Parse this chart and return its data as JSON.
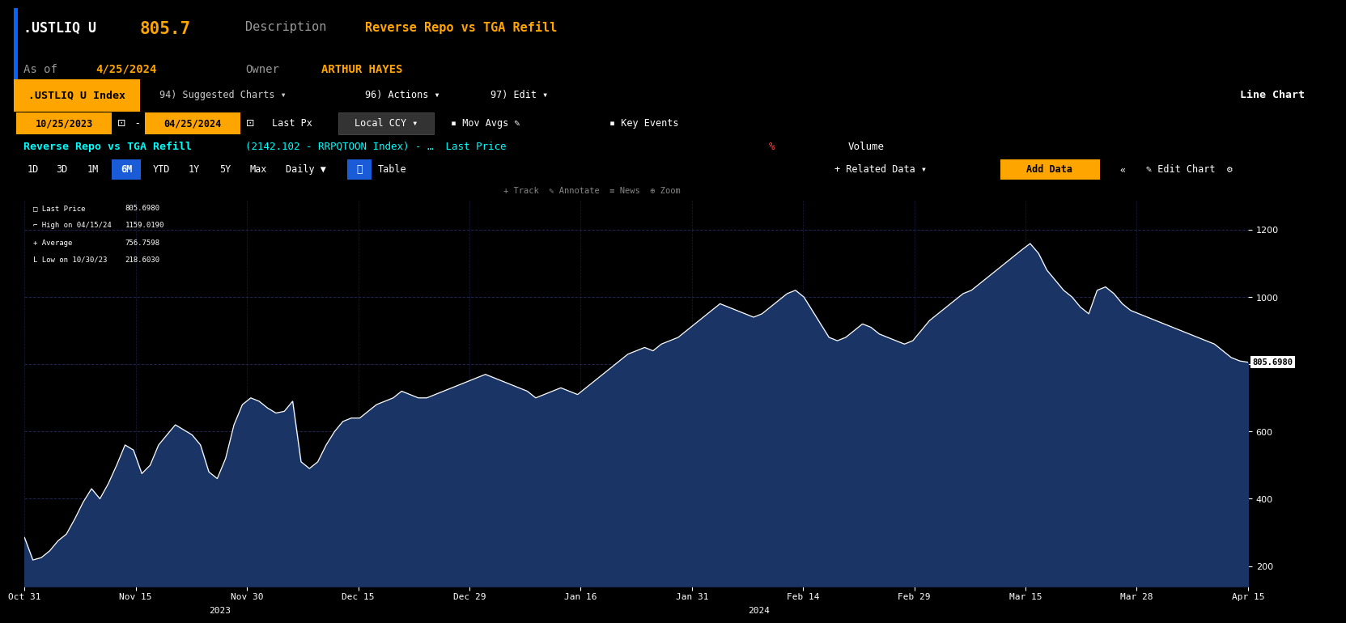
{
  "title_ticker": ".USTLIQ U",
  "title_value": "805.7",
  "title_desc_label": "Description",
  "title_desc_value": "Reverse Repo vs TGA Refill",
  "title_date_label": "As of",
  "title_date_value": "4/25/2024",
  "title_owner_label": "Owner",
  "title_owner_value": "ARTHUR HAYES",
  "chart_type": "Line Chart",
  "index_label": ".USTLIQ U Index",
  "last_price_label": "Last Price",
  "last_price": 805.698,
  "high_label": "High on 04/15/24",
  "high_value": 1159.019,
  "average_label": "Average",
  "average_value": 756.7598,
  "low_label": "Low on 10/30/23",
  "low_value": 218.603,
  "y_ticks": [
    200,
    400,
    600,
    800,
    1000,
    1200
  ],
  "ylim": [
    140,
    1290
  ],
  "x_labels": [
    "Oct 31",
    "Nov 15",
    "Nov 30",
    "Dec 15",
    "Dec 29",
    "Jan 16",
    "Jan 31",
    "Feb 14",
    "Feb 29",
    "Mar 15",
    "Mar 28",
    "Apr 15"
  ],
  "bg_color": "#000000",
  "red_bar_color": "#8B0000",
  "accent_orange": "#FFA500",
  "accent_cyan": "#00FFFF",
  "line_color": "#FFFFFF",
  "fill_color": "#1a3565",
  "grid_color": "#1e2550",
  "text_white": "#FFFFFF",
  "text_gray": "#999999",
  "blue_btn": "#1a5cd8",
  "data_y": [
    285,
    218,
    225,
    245,
    275,
    295,
    340,
    390,
    430,
    400,
    445,
    500,
    560,
    545,
    475,
    500,
    560,
    590,
    620,
    605,
    590,
    560,
    480,
    460,
    520,
    620,
    680,
    700,
    690,
    670,
    655,
    660,
    690,
    510,
    490,
    510,
    560,
    600,
    630,
    640,
    640,
    660,
    680,
    690,
    700,
    720,
    710,
    700,
    700,
    710,
    720,
    730,
    740,
    750,
    760,
    770,
    760,
    750,
    740,
    730,
    720,
    700,
    710,
    720,
    730,
    720,
    710,
    730,
    750,
    770,
    790,
    810,
    830,
    840,
    850,
    840,
    860,
    870,
    880,
    900,
    920,
    940,
    960,
    980,
    970,
    960,
    950,
    940,
    950,
    970,
    990,
    1010,
    1020,
    1000,
    960,
    920,
    880,
    870,
    880,
    900,
    920,
    910,
    890,
    880,
    870,
    860,
    870,
    900,
    930,
    950,
    970,
    990,
    1010,
    1020,
    1040,
    1060,
    1080,
    1100,
    1120,
    1140,
    1159,
    1130,
    1080,
    1050,
    1020,
    1000,
    970,
    950,
    1020,
    1030,
    1010,
    980,
    960,
    950,
    940,
    930,
    920,
    910,
    900,
    890,
    880,
    870,
    860,
    840,
    820,
    810,
    806
  ]
}
